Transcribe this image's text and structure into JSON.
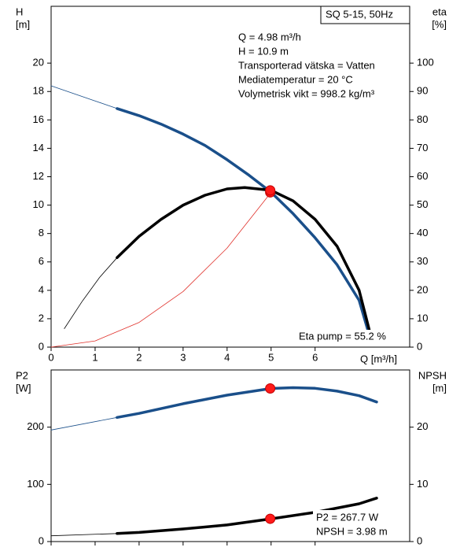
{
  "chart_data": [
    {
      "type": "line",
      "title": "SQ 5-15, 50Hz",
      "annotations": [
        "Q = 4.98 m³/h",
        "H = 10.9 m",
        "Transporterad vätska = Vatten",
        "Mediatemperatur = 20 °C",
        "Volymetrisk vikt = 998.2 kg/m³"
      ],
      "note": "Eta pump = 55.2 %",
      "x_label": "Q [m³/h]",
      "y_label": [
        "H",
        "[m]"
      ],
      "y2_label": [
        "eta",
        "[%]"
      ],
      "xlim": [
        0,
        8.15
      ],
      "xticks": [
        0,
        1,
        2,
        3,
        4,
        5,
        6
      ],
      "ylim": [
        0,
        24
      ],
      "yticks": [
        0,
        2,
        4,
        6,
        8,
        10,
        12,
        14,
        16,
        18,
        20
      ],
      "y2lim": [
        0,
        120
      ],
      "y2ticks": [
        0,
        10,
        20,
        30,
        40,
        50,
        60,
        70,
        80,
        90,
        100
      ],
      "series": [
        {
          "color": "#1a4f8a",
          "line_width": 0.8,
          "x": [
            0,
            1.5
          ],
          "values": [
            18.4,
            16.8
          ]
        },
        {
          "color": "#1a4f8a",
          "line_width": 3.5,
          "x": [
            1.5,
            2,
            2.5,
            3,
            3.5,
            4,
            4.5,
            5,
            5.5,
            6,
            6.5,
            7,
            7.2
          ],
          "values": [
            16.8,
            16.3,
            15.7,
            15.0,
            14.2,
            13.2,
            12.1,
            10.9,
            9.4,
            7.7,
            5.8,
            3.3,
            1.2
          ]
        },
        {
          "color": "#000000",
          "line_width": 0.8,
          "axis": "y2",
          "x": [
            0.3,
            0.7,
            1.1,
            1.5
          ],
          "values": [
            6.5,
            16,
            24.5,
            31.5
          ]
        },
        {
          "color": "#000000",
          "line_width": 3.5,
          "axis": "y2",
          "x": [
            1.5,
            2,
            2.5,
            3,
            3.5,
            4,
            4.4,
            5,
            5.5,
            6,
            6.5,
            7,
            7.25
          ],
          "values": [
            31.5,
            39,
            45,
            50,
            53.5,
            55.7,
            56.2,
            55.2,
            51.5,
            45,
            35.5,
            20,
            5
          ]
        },
        {
          "color": "#e0302a",
          "line_width": 0.8,
          "x": [
            0,
            1,
            2,
            3,
            4,
            5
          ],
          "values": [
            0,
            0.44,
            1.74,
            3.92,
            6.98,
            10.9
          ]
        }
      ],
      "points": [
        {
          "x": 4.98,
          "value": 10.9,
          "color": "#ff1a1a"
        },
        {
          "x": 4.98,
          "value": 55.2,
          "axis": "y2",
          "color": "#ff1a1a"
        }
      ]
    },
    {
      "type": "line",
      "annotations": [
        "P2 = 267.7 W",
        "NPSH = 3.98 m"
      ],
      "y_label": [
        "P2",
        "[W]"
      ],
      "y2_label": [
        "NPSH",
        "[m]"
      ],
      "xlim": [
        0,
        8.15
      ],
      "ylim": [
        0,
        300
      ],
      "yticks": [
        0,
        100,
        200
      ],
      "y2lim": [
        0,
        30
      ],
      "y2ticks": [
        0,
        10,
        20
      ],
      "series": [
        {
          "color": "#1a4f8a",
          "line_width": 0.8,
          "x": [
            0,
            1.5
          ],
          "values": [
            195,
            217
          ]
        },
        {
          "color": "#1a4f8a",
          "line_width": 3.5,
          "x": [
            1.5,
            2,
            3,
            4,
            5,
            5.5,
            6,
            6.5,
            7,
            7.4
          ],
          "values": [
            217,
            224,
            241,
            256,
            267.7,
            269,
            268,
            263,
            255,
            244
          ]
        },
        {
          "color": "#000000",
          "line_width": 0.8,
          "axis": "y2",
          "x": [
            0,
            1.5
          ],
          "values": [
            1.0,
            1.4
          ]
        },
        {
          "color": "#000000",
          "line_width": 3.5,
          "axis": "y2",
          "x": [
            1.5,
            2,
            3,
            4,
            5,
            6,
            7,
            7.4
          ],
          "values": [
            1.4,
            1.6,
            2.2,
            2.9,
            3.98,
            5.1,
            6.6,
            7.6
          ]
        }
      ],
      "points": [
        {
          "x": 4.98,
          "value": 267.7,
          "color": "#ff1a1a"
        },
        {
          "x": 4.98,
          "value": 3.98,
          "axis": "y2",
          "color": "#ff1a1a"
        }
      ]
    }
  ]
}
